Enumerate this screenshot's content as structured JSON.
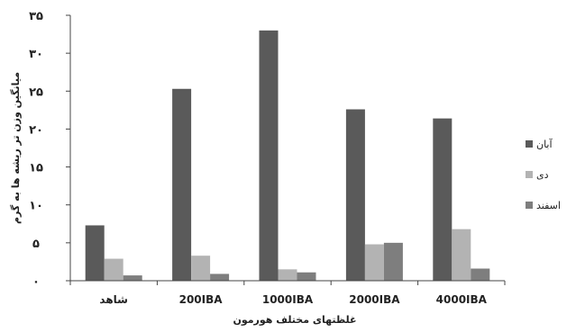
{
  "chart_data": {
    "type": "bar",
    "title": "",
    "xlabel": "غلظتهای مختلف هورمون",
    "ylabel": "میانگین وزن تر ریشه ها به گرم",
    "categories": [
      "شاهد",
      "200IBA",
      "1000IBA",
      "2000IBA",
      "4000IBA"
    ],
    "ylim": [
      0,
      35
    ],
    "yticks": [
      0,
      5,
      10,
      15,
      20,
      25,
      30,
      35
    ],
    "ytick_labels": [
      "۰",
      "۵",
      "۱۰",
      "۱۵",
      "۲۰",
      "۲۵",
      "۳۰",
      "۳۵"
    ],
    "grid": false,
    "legend": "right",
    "series": [
      {
        "name": "آبان",
        "color": "#5a5a5a",
        "values": [
          7.3,
          25.3,
          33.0,
          22.6,
          21.4
        ]
      },
      {
        "name": "دی",
        "color": "#b3b3b3",
        "values": [
          2.9,
          3.3,
          1.5,
          4.8,
          6.8
        ]
      },
      {
        "name": "اسفند",
        "color": "#7e7e7e",
        "values": [
          0.7,
          0.9,
          1.1,
          5.0,
          1.6
        ]
      }
    ]
  }
}
